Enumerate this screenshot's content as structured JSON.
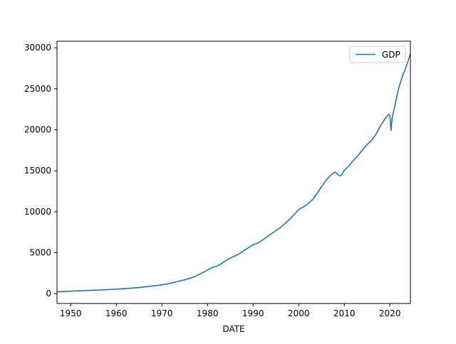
{
  "chart_data": {
    "type": "line",
    "title": "",
    "xlabel": "DATE",
    "ylabel": "",
    "xlim": [
      1947,
      2024.5
    ],
    "ylim": [
      -1200,
      30800
    ],
    "x_ticks": [
      1950,
      1960,
      1970,
      1980,
      1990,
      2000,
      2010,
      2020
    ],
    "x_tick_labels": [
      "1950",
      "1960",
      "1970",
      "1980",
      "1990",
      "2000",
      "2010",
      "2020"
    ],
    "y_ticks": [
      0,
      5000,
      10000,
      15000,
      20000,
      25000,
      30000
    ],
    "y_tick_labels": [
      "0",
      "5000",
      "10000",
      "15000",
      "20000",
      "25000",
      "30000"
    ],
    "grid": false,
    "legend": {
      "position": "top-right"
    },
    "series": [
      {
        "name": "GDP",
        "color": "#1f77b4",
        "x": [
          1947,
          1950,
          1955,
          1960,
          1965,
          1970,
          1972,
          1975,
          1977,
          1980,
          1981,
          1982,
          1983,
          1984,
          1985,
          1987,
          1988,
          1990,
          1991,
          1992,
          1994,
          1996,
          1998,
          2000,
          2001,
          2002,
          2003,
          2004,
          2005,
          2006,
          2007,
          2008,
          2008.5,
          2009,
          2009.5,
          2010,
          2011,
          2012,
          2013,
          2014,
          2015,
          2016,
          2017,
          2018,
          2019,
          2019.75,
          2020.0,
          2020.25,
          2020.5,
          2021,
          2021.5,
          2022,
          2022.5,
          2023,
          2023.5,
          2024,
          2024.5
        ],
        "y": [
          243,
          300,
          426,
          543,
          743,
          1074,
          1280,
          1690,
          2030,
          2860,
          3200,
          3345,
          3640,
          4040,
          4340,
          4870,
          5250,
          5960,
          6160,
          6520,
          7310,
          8070,
          9060,
          10250,
          10580,
          10940,
          11460,
          12210,
          13040,
          13810,
          14450,
          14840,
          14600,
          14350,
          14550,
          15050,
          15600,
          16250,
          16850,
          17550,
          18200,
          18700,
          19500,
          20550,
          21380,
          21900,
          21700,
          19900,
          21450,
          22700,
          24000,
          25200,
          26100,
          26900,
          27600,
          28400,
          29300
        ]
      }
    ]
  }
}
